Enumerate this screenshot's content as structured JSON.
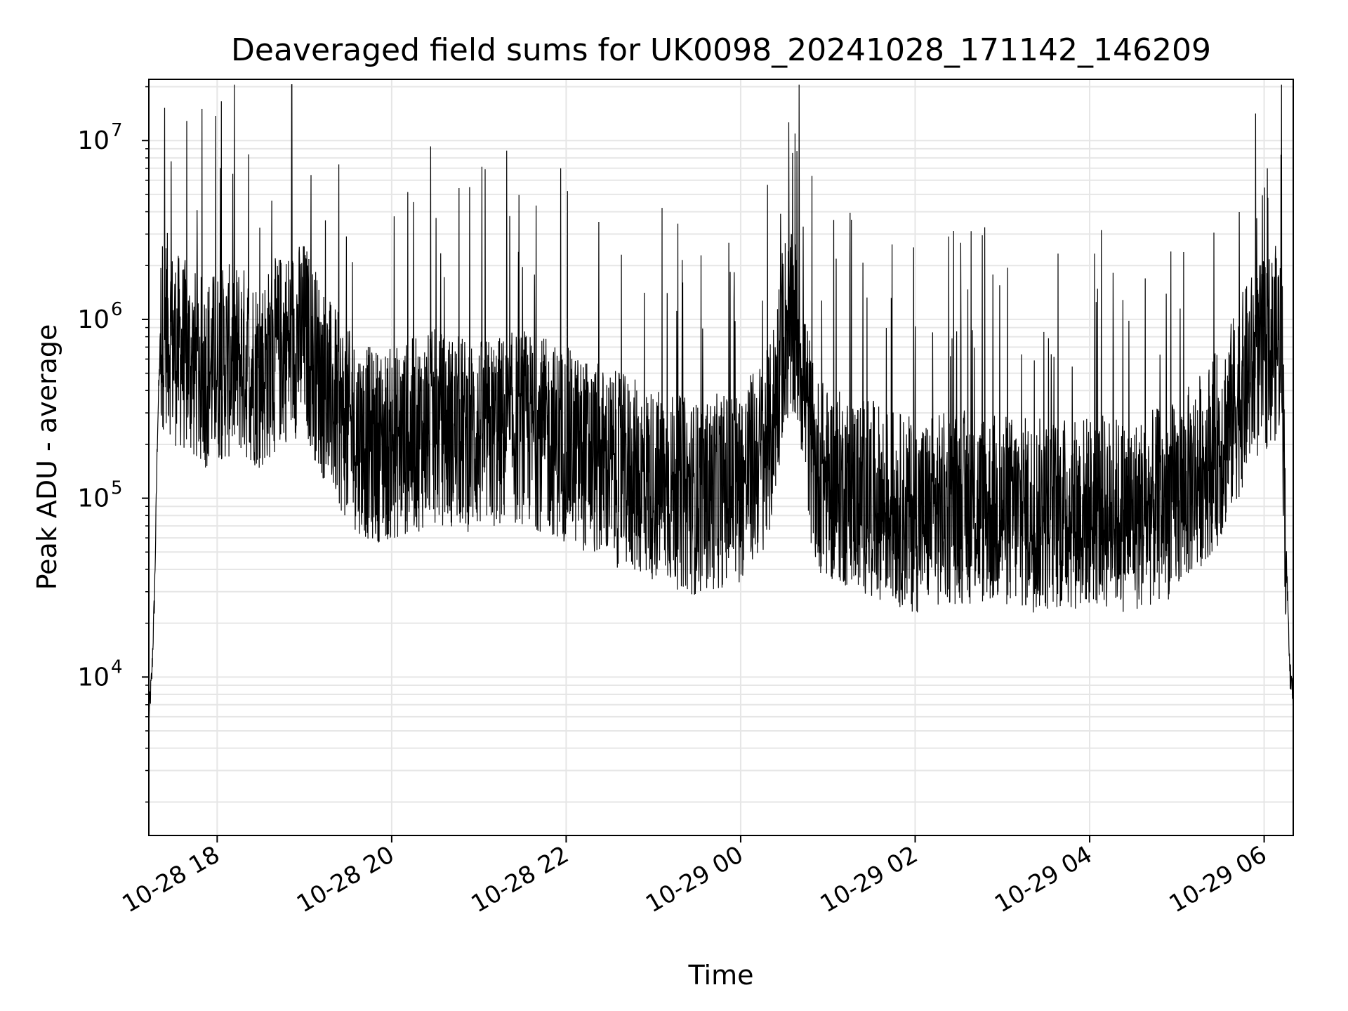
{
  "chart_data": {
    "type": "line",
    "title": "Deaveraged field sums for UK0098_20241028_171142_146209",
    "xlabel": "Time",
    "ylabel": "Peak ADU - average",
    "yscale": "log",
    "ylim": [
      1300,
      22000000
    ],
    "xlim": [
      "2024-10-28 17:13",
      "2024-10-29 06:20"
    ],
    "grid": true,
    "legend": "none",
    "line_color": "#000000",
    "grid_color": "#e6e6e6",
    "x_ticks": [
      {
        "time": "2024-10-28 18:00",
        "label": "10-28 18"
      },
      {
        "time": "2024-10-28 20:00",
        "label": "10-28 20"
      },
      {
        "time": "2024-10-28 22:00",
        "label": "10-28 22"
      },
      {
        "time": "2024-10-29 00:00",
        "label": "10-29 00"
      },
      {
        "time": "2024-10-29 02:00",
        "label": "10-29 02"
      },
      {
        "time": "2024-10-29 04:00",
        "label": "10-29 04"
      },
      {
        "time": "2024-10-29 06:00",
        "label": "10-29 06"
      }
    ],
    "y_ticks": [
      {
        "value": 10000,
        "base": "10",
        "exp": "4"
      },
      {
        "value": 100000,
        "base": "10",
        "exp": "5"
      },
      {
        "value": 1000000,
        "base": "10",
        "exp": "6"
      },
      {
        "value": 10000000,
        "base": "10",
        "exp": "7"
      }
    ],
    "series": [
      {
        "x": [
          "2024-10-28 17:13",
          "2024-10-28 17:15",
          "2024-10-28 17:17",
          "2024-10-28 17:19",
          "2024-10-28 17:21",
          "2024-10-28 17:25",
          "2024-10-28 17:30",
          "2024-10-28 17:40",
          "2024-10-28 17:50",
          "2024-10-28 18:00",
          "2024-10-28 18:15",
          "2024-10-28 18:30",
          "2024-10-28 18:45",
          "2024-10-28 19:00",
          "2024-10-28 19:15",
          "2024-10-28 19:30",
          "2024-10-28 19:45",
          "2024-10-28 20:00",
          "2024-10-28 20:30",
          "2024-10-28 21:00",
          "2024-10-28 21:30",
          "2024-10-28 22:00",
          "2024-10-28 22:30",
          "2024-10-28 23:00",
          "2024-10-28 23:30",
          "2024-10-29 00:00",
          "2024-10-29 00:20",
          "2024-10-29 00:30",
          "2024-10-29 00:40",
          "2024-10-29 00:50",
          "2024-10-29 01:00",
          "2024-10-29 01:30",
          "2024-10-29 02:00",
          "2024-10-29 02:30",
          "2024-10-29 03:00",
          "2024-10-29 03:30",
          "2024-10-29 04:00",
          "2024-10-29 04:30",
          "2024-10-29 05:00",
          "2024-10-29 05:30",
          "2024-10-29 05:50",
          "2024-10-29 06:05",
          "2024-10-29 06:12",
          "2024-10-29 06:15",
          "2024-10-29 06:18",
          "2024-10-29 06:20"
        ],
        "y": [
          6000,
          10000,
          30000,
          250000,
          800000,
          900000,
          700000,
          600000,
          500000,
          550000,
          600000,
          500000,
          700000,
          800000,
          400000,
          250000,
          200000,
          200000,
          250000,
          220000,
          250000,
          200000,
          150000,
          120000,
          100000,
          120000,
          200000,
          900000,
          800000,
          150000,
          120000,
          100000,
          80000,
          90000,
          85000,
          80000,
          85000,
          80000,
          100000,
          200000,
          500000,
          700000,
          800000,
          50000,
          10000,
          8000
        ]
      }
    ]
  }
}
